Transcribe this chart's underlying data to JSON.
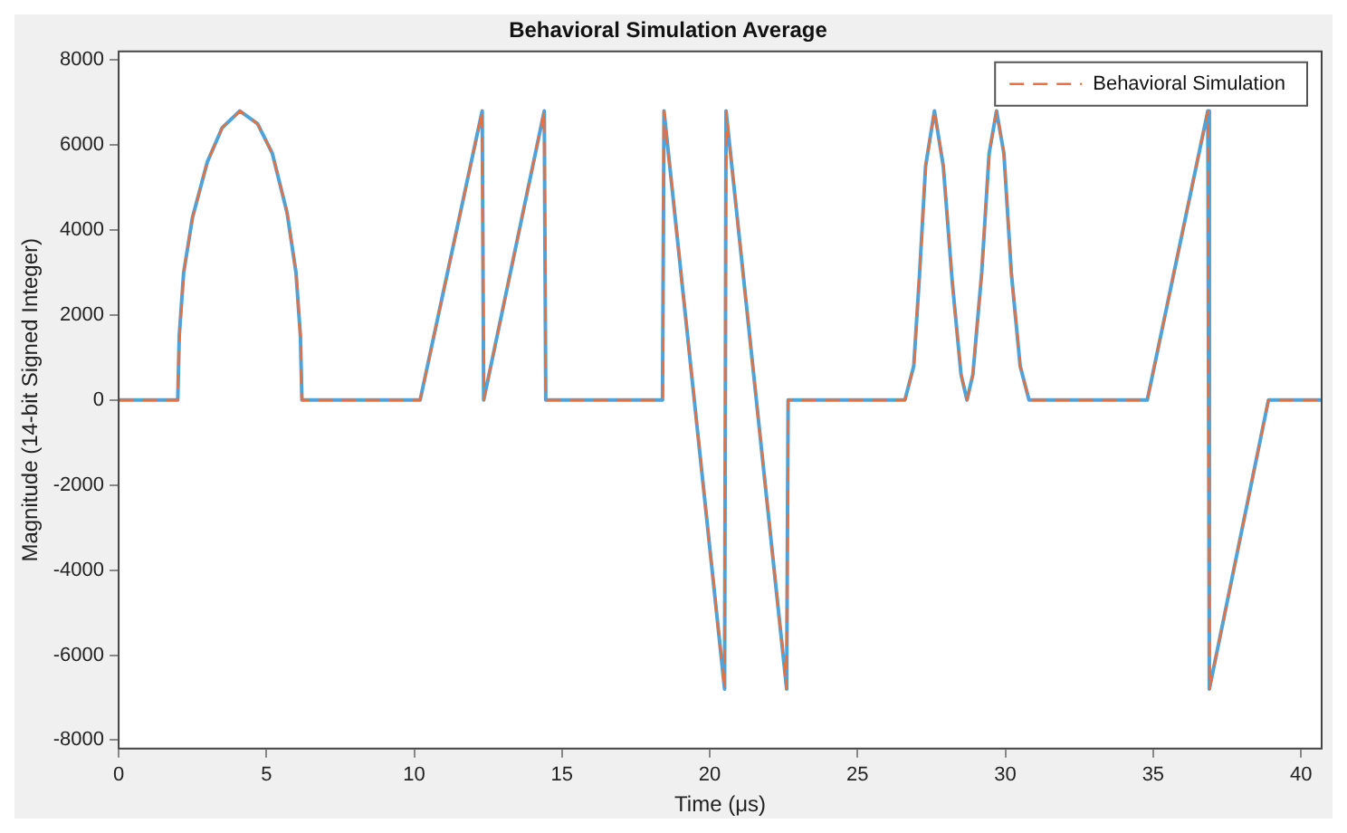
{
  "chart_data": {
    "type": "line",
    "title": "Behavioral Simulation Average",
    "xlabel": "Time (μs)",
    "ylabel": "Magnitude (14-bit Signed Integer)",
    "x": [
      0,
      2,
      2.05,
      2.2,
      2.5,
      3,
      3.5,
      4.1,
      4.7,
      5.2,
      5.7,
      6,
      6.15,
      6.2,
      10.2,
      12.3,
      12.35,
      14.4,
      14.45,
      18.4,
      18.45,
      20.5,
      20.55,
      22.6,
      22.65,
      26.6,
      26.9,
      27.1,
      27.3,
      27.6,
      27.9,
      28.2,
      28.5,
      28.7,
      28.9,
      29.2,
      29.45,
      29.7,
      29.95,
      30.2,
      30.5,
      30.8,
      34.8,
      36.85,
      36.9,
      38.9,
      40.7
    ],
    "series": [
      {
        "color": "#4fa3d8",
        "line_style": "solid",
        "values": [
          0,
          0,
          1500,
          3000,
          4300,
          5600,
          6400,
          6800,
          6500,
          5800,
          4400,
          3000,
          1500,
          0,
          0,
          6800,
          0,
          6800,
          0,
          0,
          6800,
          -6800,
          6800,
          -6800,
          0,
          0,
          800,
          3000,
          5500,
          6800,
          5500,
          2800,
          600,
          0,
          600,
          3000,
          5800,
          6800,
          5800,
          3000,
          800,
          0,
          0,
          6800,
          -6800,
          0,
          0
        ]
      },
      {
        "name": "Behavioral Simulation",
        "color": "#e8703f",
        "line_style": "dashed",
        "values": [
          0,
          0,
          1500,
          3000,
          4300,
          5600,
          6400,
          6800,
          6500,
          5800,
          4400,
          3000,
          1500,
          0,
          0,
          6800,
          0,
          6800,
          0,
          0,
          6800,
          -6800,
          6800,
          -6800,
          0,
          0,
          800,
          3000,
          5500,
          6800,
          5500,
          2800,
          600,
          0,
          600,
          3000,
          5800,
          6800,
          5800,
          3000,
          800,
          0,
          0,
          6800,
          -6800,
          0,
          0
        ]
      }
    ],
    "xlim": [
      0,
      40.7
    ],
    "xticks": [
      0,
      5,
      10,
      15,
      20,
      25,
      30,
      35,
      40
    ],
    "ylim": [
      -8200,
      8200
    ],
    "yticks": [
      -8000,
      -6000,
      -4000,
      -2000,
      0,
      2000,
      4000,
      6000,
      8000
    ],
    "grid": false,
    "legend": "top right"
  }
}
